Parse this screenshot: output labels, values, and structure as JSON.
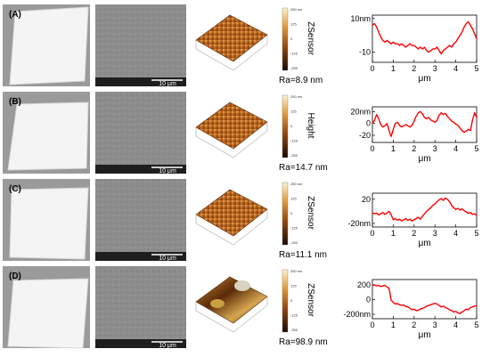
{
  "panels": [
    {
      "label": "(A)",
      "ra": "Ra=8.9 nm",
      "ylabel": "ZSensor",
      "scale_bar": "10 μm"
    },
    {
      "label": "(B)",
      "ra": "Ra=14.7 nm",
      "ylabel": "Height",
      "scale_bar": "10 μm"
    },
    {
      "label": "(C)",
      "ra": "Ra=11.1 nm",
      "ylabel": "ZSensor",
      "scale_bar": "10 μm"
    },
    {
      "label": "(D)",
      "ra": "Ra=98.9 nm",
      "ylabel": "ZSensor",
      "scale_bar": "10 μm"
    }
  ],
  "colorbar": {
    "ticks": [
      "250 nm",
      "125",
      "0",
      "-125",
      "-250"
    ]
  },
  "colors": {
    "line": "#ff0000",
    "afm_low": "#2a1303",
    "afm_mid": "#c06a1c",
    "afm_high": "#ffe8b0",
    "sem": "#8a8a8a",
    "background": "#ffffff"
  },
  "chart_data": [
    {
      "type": "line",
      "panel": "(A)",
      "xlabel": "",
      "ylabel": "",
      "xlim": [
        0,
        5
      ],
      "ylim": [
        -16,
        12
      ],
      "xticks": [
        "0",
        "1",
        "2",
        "3",
        "4",
        "5"
      ],
      "yticks": [
        {
          "v": 10,
          "t": "10nm"
        },
        {
          "v": -10,
          "t": "-10"
        }
      ],
      "series": [
        {
          "x": [
            0,
            0.1,
            0.2,
            0.3,
            0.4,
            0.5,
            0.6,
            0.7,
            0.8,
            0.9,
            1.0,
            1.1,
            1.2,
            1.3,
            1.4,
            1.5,
            1.6,
            1.7,
            1.8,
            1.9,
            2.0,
            2.1,
            2.2,
            2.3,
            2.4,
            2.5,
            2.6,
            2.7,
            2.8,
            2.9,
            3.0,
            3.1,
            3.2,
            3.3,
            3.4,
            3.5,
            3.6,
            3.7,
            3.8,
            3.9,
            4.0,
            4.1,
            4.2,
            4.3,
            4.4,
            4.5,
            4.6,
            4.7,
            4.8,
            4.9,
            5.0
          ],
          "y": [
            6,
            7,
            5,
            2,
            -1,
            -3,
            -4,
            -3,
            -4,
            -5,
            -4,
            -5,
            -5,
            -6,
            -5,
            -6,
            -7,
            -6,
            -5,
            -6,
            -6,
            -7,
            -8,
            -7,
            -8,
            -7,
            -9,
            -10,
            -9,
            -8,
            -8,
            -7,
            -9,
            -11,
            -9,
            -8,
            -7,
            -6,
            -7,
            -5,
            -4,
            -2,
            0,
            2,
            5,
            7,
            8,
            6,
            4,
            1,
            -2
          ]
        }
      ]
    },
    {
      "type": "line",
      "panel": "(B)",
      "xlabel": "",
      "ylabel": "",
      "xlim": [
        0,
        5
      ],
      "ylim": [
        -32,
        28
      ],
      "xticks": [
        "0",
        "1",
        "2",
        "3",
        "4",
        "5"
      ],
      "yticks": [
        {
          "v": 20,
          "t": "20nm"
        },
        {
          "v": 0,
          "t": "0"
        },
        {
          "v": -20,
          "t": "-20"
        }
      ],
      "series": [
        {
          "x": [
            0,
            0.1,
            0.2,
            0.3,
            0.4,
            0.5,
            0.6,
            0.7,
            0.8,
            0.9,
            1.0,
            1.1,
            1.2,
            1.3,
            1.4,
            1.5,
            1.6,
            1.7,
            1.8,
            1.9,
            2.0,
            2.1,
            2.2,
            2.3,
            2.4,
            2.5,
            2.6,
            2.7,
            2.8,
            2.9,
            3.0,
            3.1,
            3.2,
            3.3,
            3.4,
            3.5,
            3.6,
            3.7,
            3.8,
            3.9,
            4.0,
            4.1,
            4.2,
            4.3,
            4.4,
            4.5,
            4.6,
            4.7,
            4.8,
            4.9,
            5.0
          ],
          "y": [
            0,
            5,
            15,
            8,
            -2,
            -6,
            -4,
            0,
            -12,
            -22,
            -10,
            0,
            2,
            -3,
            -6,
            -4,
            -2,
            -4,
            -6,
            -3,
            4,
            12,
            18,
            20,
            16,
            10,
            8,
            10,
            6,
            4,
            2,
            5,
            14,
            18,
            15,
            17,
            12,
            8,
            4,
            2,
            -1,
            -3,
            -8,
            -12,
            -15,
            -13,
            -10,
            -12,
            5,
            18,
            10
          ]
        }
      ]
    },
    {
      "type": "line",
      "panel": "(C)",
      "xlabel": "",
      "ylabel": "",
      "xlim": [
        0,
        5
      ],
      "ylim": [
        -26,
        30
      ],
      "xticks": [
        "0",
        "1",
        "2",
        "3",
        "4",
        "5"
      ],
      "yticks": [
        {
          "v": 20,
          "t": "20"
        },
        {
          "v": -20,
          "t": "-20nm"
        }
      ],
      "series": [
        {
          "x": [
            0,
            0.1,
            0.2,
            0.3,
            0.4,
            0.5,
            0.6,
            0.7,
            0.8,
            0.9,
            1.0,
            1.1,
            1.2,
            1.3,
            1.4,
            1.5,
            1.6,
            1.7,
            1.8,
            1.9,
            2.0,
            2.1,
            2.2,
            2.3,
            2.4,
            2.5,
            2.6,
            2.7,
            2.8,
            2.9,
            3.0,
            3.1,
            3.2,
            3.3,
            3.4,
            3.5,
            3.6,
            3.7,
            3.8,
            3.9,
            4.0,
            4.1,
            4.2,
            4.3,
            4.4,
            4.5,
            4.6,
            4.7,
            4.8,
            4.9,
            5.0
          ],
          "y": [
            -2,
            -4,
            -3,
            -6,
            -4,
            -2,
            -5,
            -3,
            0,
            -6,
            -14,
            -12,
            -15,
            -13,
            -16,
            -14,
            -12,
            -15,
            -13,
            -16,
            -14,
            -12,
            -10,
            -13,
            -8,
            -4,
            0,
            3,
            6,
            10,
            12,
            16,
            19,
            21,
            18,
            22,
            20,
            16,
            10,
            6,
            3,
            5,
            2,
            4,
            1,
            -1,
            -3,
            -2,
            -5,
            -4,
            -7
          ]
        }
      ]
    },
    {
      "type": "line",
      "panel": "(D)",
      "xlabel": "μm",
      "ylabel": "",
      "xlim": [
        0,
        5
      ],
      "ylim": [
        -260,
        270
      ],
      "xticks": [
        "0",
        "1",
        "2",
        "3",
        "4",
        "5"
      ],
      "yticks": [
        {
          "v": 200,
          "t": "200"
        },
        {
          "v": 0,
          "t": "0"
        },
        {
          "v": -200,
          "t": "-200nm"
        }
      ],
      "series": [
        {
          "x": [
            0,
            0.1,
            0.2,
            0.3,
            0.4,
            0.5,
            0.6,
            0.7,
            0.8,
            0.9,
            1.0,
            1.1,
            1.2,
            1.3,
            1.4,
            1.5,
            1.6,
            1.7,
            1.8,
            1.9,
            2.0,
            2.1,
            2.2,
            2.3,
            2.4,
            2.5,
            2.6,
            2.7,
            2.8,
            2.9,
            3.0,
            3.1,
            3.2,
            3.3,
            3.4,
            3.5,
            3.6,
            3.7,
            3.8,
            3.9,
            4.0,
            4.1,
            4.2,
            4.3,
            4.4,
            4.5,
            4.6,
            4.7,
            4.8,
            4.9,
            5.0
          ],
          "y": [
            190,
            195,
            185,
            190,
            175,
            185,
            190,
            170,
            150,
            -10,
            -40,
            -60,
            -55,
            -70,
            -80,
            -75,
            -95,
            -100,
            -120,
            -140,
            -130,
            -150,
            -145,
            -130,
            -120,
            -110,
            -90,
            -80,
            -70,
            -60,
            -50,
            -60,
            -80,
            -100,
            -90,
            -110,
            -120,
            -140,
            -150,
            -170,
            -160,
            -180,
            -190,
            -170,
            -150,
            -130,
            -140,
            -110,
            -100,
            -90,
            -80
          ]
        }
      ]
    }
  ]
}
